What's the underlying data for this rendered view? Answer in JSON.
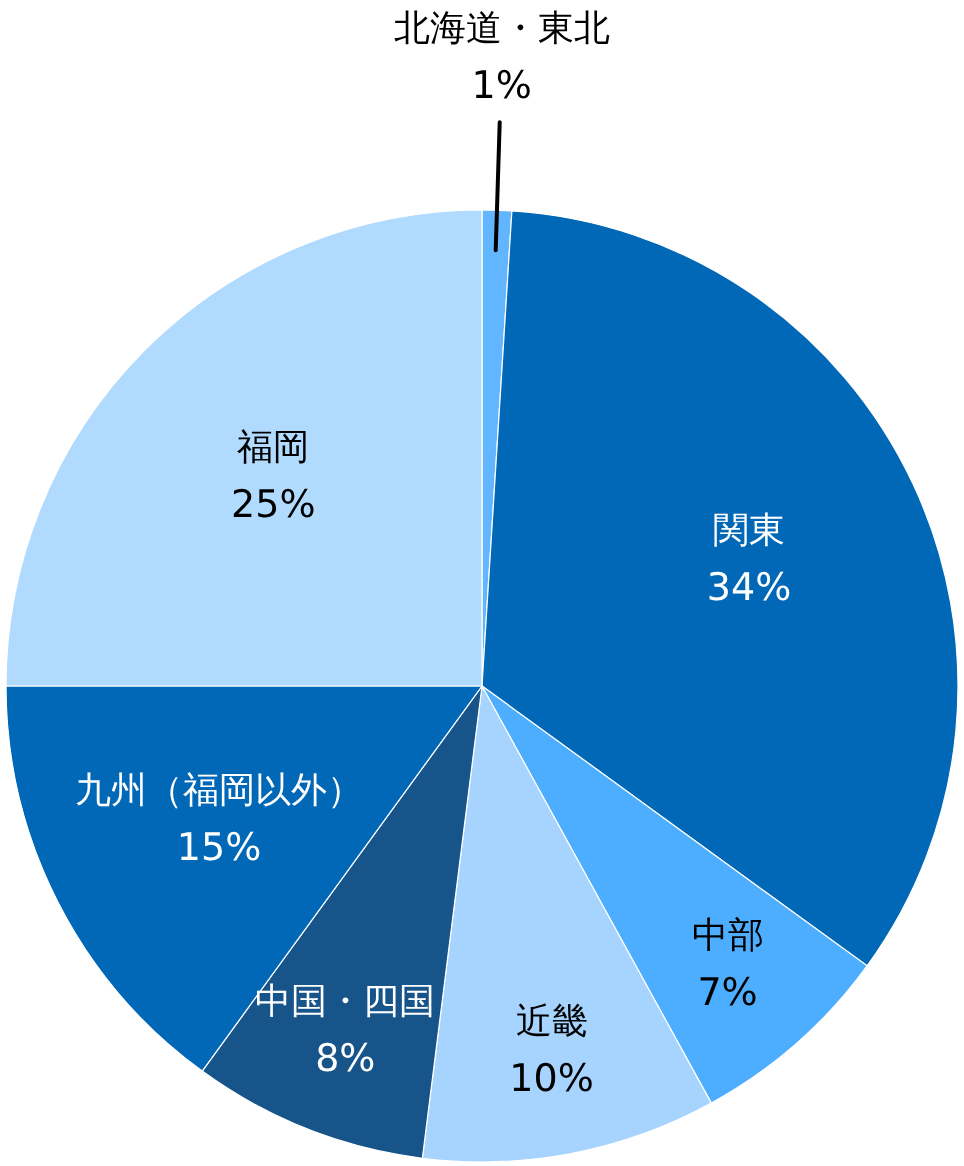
{
  "chart_data": {
    "type": "pie",
    "categories": [
      "北海道・東北",
      "関東",
      "中部",
      "近畿",
      "中国・四国",
      "九州（福岡以外）",
      "福岡"
    ],
    "values": [
      1,
      34,
      7,
      10,
      8,
      15,
      25
    ],
    "colors": [
      "#62b5ff",
      "#0068b7",
      "#4dadff",
      "#a6d4ff",
      "#17548a",
      "#0068b7",
      "#b0dbff"
    ],
    "value_labels": [
      "1%",
      "34%",
      "7%",
      "10%",
      "8%",
      "15%",
      "25%"
    ]
  }
}
